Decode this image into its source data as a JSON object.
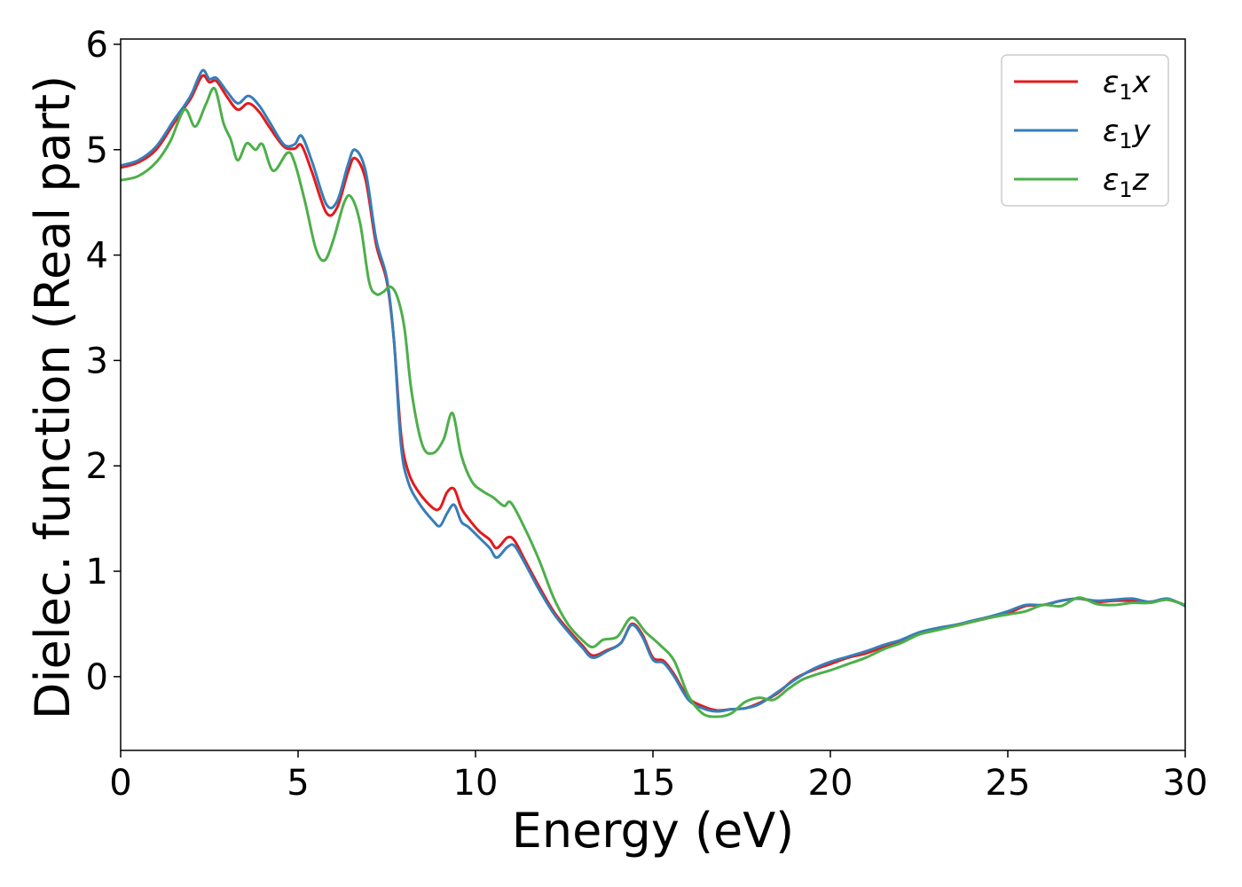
{
  "chart_data": {
    "type": "line",
    "title": "",
    "xlabel": "Energy (eV)",
    "ylabel": "Dielec. function (Real part)",
    "xlim": [
      0,
      30
    ],
    "ylim": [
      -0.7,
      6.05
    ],
    "xticks": [
      0,
      5,
      10,
      15,
      20,
      25,
      30
    ],
    "xtick_labels": [
      "0",
      "5",
      "10",
      "15",
      "20",
      "25",
      "30"
    ],
    "yticks": [
      0,
      1,
      2,
      3,
      4,
      5,
      6
    ],
    "ytick_labels": [
      "0",
      "1",
      "2",
      "3",
      "4",
      "5",
      "6"
    ],
    "grid": false,
    "legend_position": "top-right",
    "series": [
      {
        "name": "ε1x",
        "legend_base": "ε",
        "legend_sub": "1",
        "legend_suffix": "x",
        "color": "#e41a1c",
        "x": [
          0,
          0.5,
          1,
          1.5,
          1.8,
          2.0,
          2.3,
          2.5,
          2.7,
          3.0,
          3.3,
          3.6,
          3.9,
          4.2,
          4.6,
          4.9,
          5.1,
          5.4,
          5.8,
          6.1,
          6.4,
          6.6,
          6.9,
          7.2,
          7.5,
          7.7,
          7.9,
          8.1,
          8.4,
          8.8,
          9.0,
          9.2,
          9.4,
          9.6,
          9.8,
          10.1,
          10.4,
          10.6,
          10.9,
          11.1,
          11.4,
          11.8,
          12.2,
          12.6,
          13.0,
          13.3,
          13.7,
          14.1,
          14.4,
          14.7,
          15.0,
          15.3,
          15.6,
          16.0,
          16.4,
          16.8,
          17.2,
          17.6,
          18.0,
          18.5,
          19.0,
          19.5,
          20.0,
          20.5,
          21.0,
          21.5,
          22.0,
          22.5,
          23.0,
          23.5,
          24.0,
          24.5,
          25.0,
          25.5,
          26.0,
          26.5,
          27.0,
          27.5,
          28.0,
          28.5,
          29.0,
          29.5,
          30.0
        ],
        "values": [
          4.83,
          4.88,
          5.0,
          5.25,
          5.4,
          5.5,
          5.7,
          5.64,
          5.65,
          5.5,
          5.38,
          5.44,
          5.36,
          5.21,
          5.03,
          5.01,
          5.04,
          4.78,
          4.4,
          4.45,
          4.78,
          4.92,
          4.72,
          4.1,
          3.75,
          3.2,
          2.3,
          1.95,
          1.75,
          1.6,
          1.6,
          1.75,
          1.78,
          1.6,
          1.5,
          1.38,
          1.3,
          1.22,
          1.32,
          1.29,
          1.1,
          0.85,
          0.62,
          0.45,
          0.3,
          0.2,
          0.25,
          0.32,
          0.5,
          0.4,
          0.18,
          0.15,
          0.02,
          -0.2,
          -0.28,
          -0.32,
          -0.31,
          -0.3,
          -0.25,
          -0.16,
          -0.02,
          0.06,
          0.12,
          0.18,
          0.22,
          0.28,
          0.33,
          0.41,
          0.45,
          0.48,
          0.52,
          0.56,
          0.6,
          0.67,
          0.68,
          0.72,
          0.74,
          0.71,
          0.72,
          0.72,
          0.71,
          0.73,
          0.68
        ]
      },
      {
        "name": "ε1y",
        "legend_base": "ε",
        "legend_sub": "1",
        "legend_suffix": "y",
        "color": "#377eb8",
        "x": [
          0,
          0.5,
          1,
          1.5,
          1.8,
          2.0,
          2.3,
          2.5,
          2.7,
          3.0,
          3.3,
          3.6,
          3.9,
          4.2,
          4.6,
          4.9,
          5.1,
          5.4,
          5.8,
          6.1,
          6.4,
          6.6,
          6.9,
          7.2,
          7.5,
          7.7,
          7.9,
          8.1,
          8.4,
          8.8,
          9.0,
          9.2,
          9.4,
          9.6,
          9.8,
          10.1,
          10.4,
          10.6,
          10.9,
          11.1,
          11.4,
          11.8,
          12.2,
          12.6,
          13.0,
          13.3,
          13.7,
          14.1,
          14.4,
          14.7,
          15.0,
          15.3,
          15.6,
          16.0,
          16.4,
          16.8,
          17.2,
          17.6,
          18.0,
          18.5,
          19.0,
          19.5,
          20.0,
          20.5,
          21.0,
          21.5,
          22.0,
          22.5,
          23.0,
          23.5,
          24.0,
          24.5,
          25.0,
          25.5,
          26.0,
          26.5,
          27.0,
          27.5,
          28.0,
          28.5,
          29.0,
          29.5,
          30.0
        ],
        "values": [
          4.85,
          4.9,
          5.03,
          5.28,
          5.42,
          5.53,
          5.75,
          5.67,
          5.68,
          5.55,
          5.44,
          5.51,
          5.42,
          5.26,
          5.05,
          5.05,
          5.13,
          4.88,
          4.48,
          4.51,
          4.85,
          5.0,
          4.8,
          4.15,
          3.78,
          3.2,
          2.2,
          1.85,
          1.65,
          1.48,
          1.43,
          1.55,
          1.63,
          1.47,
          1.42,
          1.32,
          1.22,
          1.13,
          1.23,
          1.24,
          1.07,
          0.82,
          0.6,
          0.43,
          0.28,
          0.18,
          0.24,
          0.32,
          0.49,
          0.38,
          0.16,
          0.13,
          0.0,
          -0.22,
          -0.3,
          -0.33,
          -0.31,
          -0.3,
          -0.26,
          -0.15,
          -0.03,
          0.07,
          0.14,
          0.19,
          0.24,
          0.3,
          0.35,
          0.42,
          0.46,
          0.49,
          0.53,
          0.57,
          0.62,
          0.68,
          0.68,
          0.72,
          0.74,
          0.72,
          0.73,
          0.74,
          0.71,
          0.74,
          0.67
        ]
      },
      {
        "name": "ε1z",
        "legend_base": "ε",
        "legend_sub": "1",
        "legend_suffix": "z",
        "color": "#4daf4a",
        "x": [
          0,
          0.5,
          1,
          1.4,
          1.8,
          2.1,
          2.4,
          2.65,
          2.9,
          3.1,
          3.3,
          3.55,
          3.8,
          4.0,
          4.3,
          4.7,
          4.9,
          5.2,
          5.5,
          5.75,
          6.0,
          6.3,
          6.5,
          6.75,
          7.0,
          7.2,
          7.4,
          7.6,
          7.8,
          8.0,
          8.2,
          8.5,
          8.8,
          9.1,
          9.35,
          9.6,
          9.9,
          10.2,
          10.5,
          10.8,
          11.0,
          11.4,
          11.8,
          12.2,
          12.6,
          13.0,
          13.3,
          13.6,
          14.0,
          14.4,
          14.8,
          15.2,
          15.6,
          16.0,
          16.4,
          16.8,
          17.2,
          17.6,
          18.0,
          18.4,
          18.8,
          19.2,
          19.6,
          20.0,
          20.5,
          21.0,
          21.5,
          22.0,
          22.5,
          23.0,
          23.5,
          24.0,
          24.5,
          25.0,
          25.5,
          26.0,
          26.5,
          27.0,
          27.5,
          28.0,
          28.5,
          29.0,
          29.5,
          30.0
        ],
        "values": [
          4.71,
          4.75,
          4.88,
          5.08,
          5.38,
          5.22,
          5.43,
          5.58,
          5.25,
          5.1,
          4.9,
          5.06,
          5.0,
          5.05,
          4.8,
          4.97,
          4.88,
          4.5,
          4.06,
          3.95,
          4.15,
          4.5,
          4.55,
          4.3,
          3.75,
          3.63,
          3.65,
          3.7,
          3.6,
          3.3,
          2.7,
          2.2,
          2.12,
          2.25,
          2.5,
          2.1,
          1.85,
          1.76,
          1.7,
          1.62,
          1.65,
          1.4,
          1.1,
          0.75,
          0.5,
          0.35,
          0.28,
          0.35,
          0.38,
          0.56,
          0.42,
          0.3,
          0.15,
          -0.18,
          -0.35,
          -0.38,
          -0.35,
          -0.24,
          -0.2,
          -0.22,
          -0.12,
          -0.03,
          0.02,
          0.06,
          0.12,
          0.18,
          0.26,
          0.32,
          0.4,
          0.44,
          0.48,
          0.52,
          0.56,
          0.59,
          0.62,
          0.68,
          0.67,
          0.75,
          0.69,
          0.68,
          0.7,
          0.7,
          0.73,
          0.68
        ]
      }
    ]
  }
}
